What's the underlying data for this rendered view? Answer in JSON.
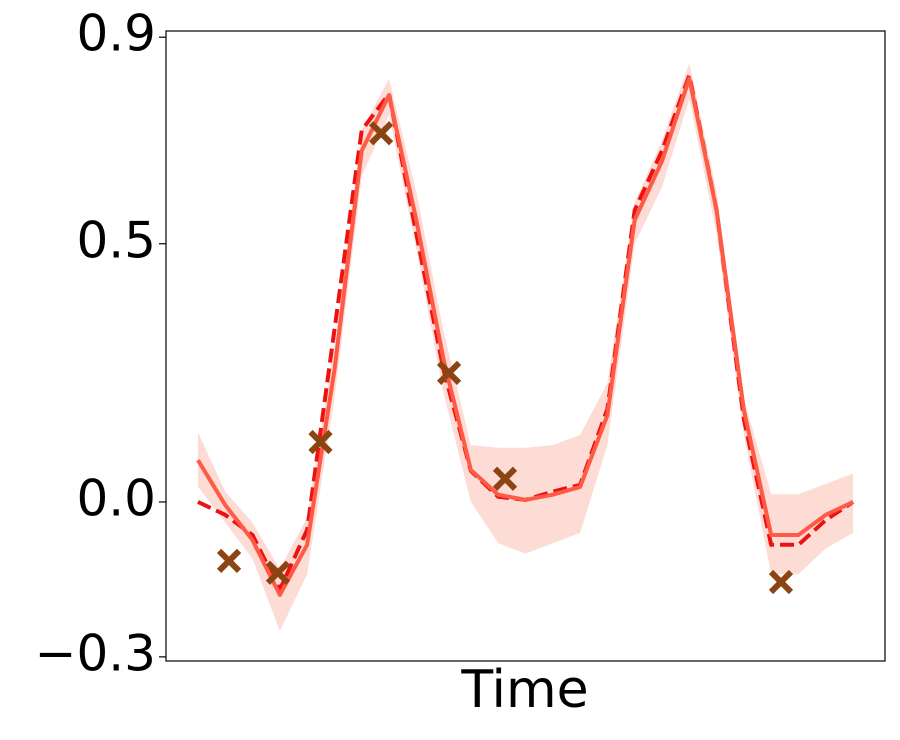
{
  "chart_data": {
    "type": "line",
    "x_label": "Time",
    "x": [
      0,
      1,
      2,
      3,
      4,
      5,
      6,
      7,
      8,
      9,
      10,
      11,
      12,
      13,
      14,
      15,
      16,
      17,
      18,
      19,
      20,
      21,
      22,
      23,
      24
    ],
    "xlim": [
      -1.17,
      25.17
    ],
    "ylim": [
      -0.308,
      0.912
    ],
    "yticks": [
      {
        "value": -0.3,
        "label": "−0.3"
      },
      {
        "value": 0,
        "label": "0.0"
      },
      0.5,
      0.9
    ],
    "band": {
      "color": "#fbb9ad",
      "upper": [
        0.135,
        0.02,
        -0.04,
        -0.13,
        -0.03,
        0.3,
        0.72,
        0.82,
        0.6,
        0.33,
        0.11,
        0.105,
        0.105,
        0.11,
        0.13,
        0.23,
        0.58,
        0.7,
        0.85,
        0.6,
        0.2,
        0.015,
        0.015,
        0.035,
        0.055
      ],
      "lower": [
        0.03,
        -0.04,
        -0.11,
        -0.25,
        -0.14,
        0.2,
        0.63,
        0.75,
        0.49,
        0.21,
        0.0,
        -0.08,
        -0.1,
        -0.08,
        -0.06,
        0.11,
        0.5,
        0.61,
        0.78,
        0.52,
        0.13,
        -0.14,
        -0.14,
        -0.09,
        -0.06
      ]
    },
    "series": [
      {
        "color": "#ee1111",
        "style": "dashed",
        "values": [
          0.0,
          -0.025,
          -0.064,
          -0.17,
          -0.054,
          0.333,
          0.72,
          0.79,
          0.52,
          0.255,
          0.06,
          0.01,
          0.004,
          0.02,
          0.033,
          0.18,
          0.565,
          0.68,
          0.826,
          0.565,
          0.16,
          -0.083,
          -0.083,
          -0.035,
          0.0
        ]
      },
      {
        "color": "#ff5a46",
        "style": "solid",
        "values": [
          0.081,
          -0.006,
          -0.074,
          -0.18,
          -0.083,
          0.255,
          0.68,
          0.788,
          0.546,
          0.275,
          0.062,
          0.014,
          0.004,
          0.014,
          0.029,
          0.168,
          0.546,
          0.66,
          0.82,
          0.565,
          0.178,
          -0.064,
          -0.064,
          -0.025,
          0.0
        ]
      }
    ],
    "points": {
      "color": "#8b4513",
      "marker": "x",
      "x": [
        1.14,
        2.93,
        4.49,
        6.71,
        9.2,
        11.25,
        21.36
      ],
      "y": [
        -0.114,
        -0.137,
        0.116,
        0.714,
        0.25,
        0.045,
        -0.155
      ]
    }
  }
}
